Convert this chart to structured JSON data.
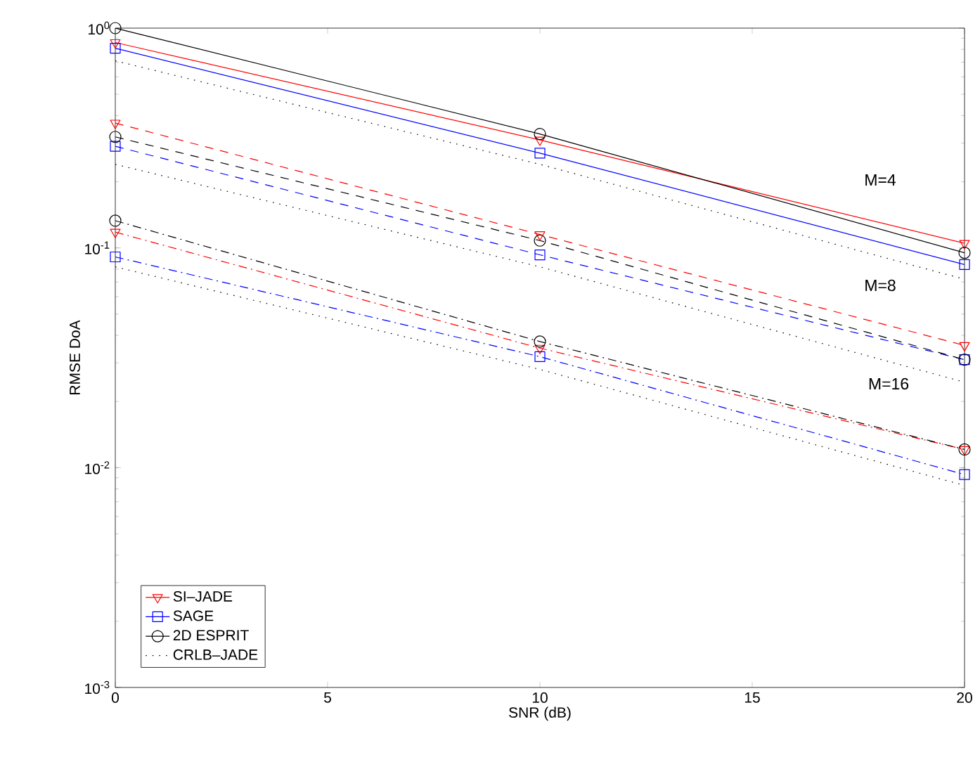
{
  "chart_data": {
    "type": "line",
    "xlabel": "SNR (dB)",
    "ylabel": "RMSE DoA",
    "x": [
      0,
      10,
      20
    ],
    "log": "y",
    "grid": false,
    "legend": "bottom left",
    "xlim": [
      0,
      20
    ],
    "xticks": [
      0,
      5,
      10,
      15,
      20
    ],
    "ylim": [
      0.001,
      1
    ],
    "yticks": [
      {
        "value": 0.001,
        "label": "10$^{-3}$"
      },
      {
        "value": 0.01,
        "label": "10$^{-2}$"
      },
      {
        "value": 0.1,
        "label": "10$^{-1}$"
      },
      {
        "value": 1,
        "label": "10$^{0}$"
      }
    ],
    "series": [
      {
        "name": "SI–JADE",
        "color": "#ff0000",
        "marker": "triangle",
        "line_style": "solid",
        "values": [
          0.86,
          0.31,
          0.105
        ]
      },
      {
        "name": "SAGE",
        "color": "#0000ff",
        "marker": "square",
        "line_style": "solid",
        "values": [
          0.81,
          0.27,
          0.084
        ]
      },
      {
        "name": "2D ESPRIT",
        "color": "#000000",
        "marker": "circle",
        "line_style": "solid",
        "values": [
          1.0,
          0.33,
          0.095
        ]
      },
      {
        "name": "CRLB–JADE",
        "color": "#000000",
        "marker": "none",
        "line_style": "dotted",
        "values": [
          0.71,
          0.24,
          0.072
        ]
      },
      {
        "color": "#ff0000",
        "marker": "triangle",
        "line_style": "dashed",
        "values": [
          0.37,
          0.115,
          0.036
        ]
      },
      {
        "color": "#0000ff",
        "marker": "square",
        "line_style": "dashed",
        "values": [
          0.29,
          0.093,
          0.031
        ]
      },
      {
        "color": "#000000",
        "marker": "circle",
        "line_style": "dashed",
        "values": [
          0.32,
          0.108,
          0.031
        ]
      },
      {
        "color": "#000000",
        "marker": "none",
        "line_style": "dotted",
        "values": [
          0.24,
          0.082,
          0.0245
        ]
      },
      {
        "color": "#ff0000",
        "marker": "triangle",
        "line_style": "dashdot",
        "values": [
          0.118,
          0.035,
          0.0121
        ]
      },
      {
        "color": "#0000ff",
        "marker": "square",
        "line_style": "dashdot",
        "values": [
          0.091,
          0.032,
          0.0093
        ]
      },
      {
        "color": "#000000",
        "marker": "circle",
        "line_style": "dashdot",
        "values": [
          0.133,
          0.0375,
          0.0121
        ]
      },
      {
        "color": "#000000",
        "marker": "none",
        "line_style": "dotted",
        "values": [
          0.082,
          0.028,
          0.0083
        ]
      }
    ],
    "annotations": [
      "M=4",
      "M=8",
      "M=16"
    ]
  }
}
